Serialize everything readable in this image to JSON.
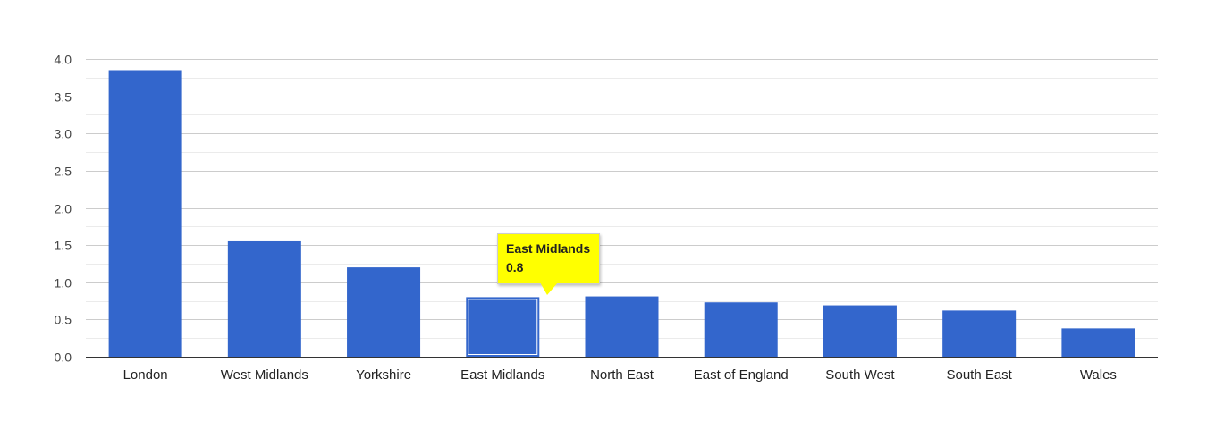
{
  "chart_data": {
    "type": "bar",
    "title": "",
    "xlabel": "",
    "ylabel": "",
    "categories": [
      "London",
      "West Midlands",
      "Yorkshire",
      "East Midlands",
      "North East",
      "East of England",
      "South West",
      "South East",
      "Wales"
    ],
    "values": [
      3.85,
      1.55,
      1.2,
      0.8,
      0.81,
      0.73,
      0.69,
      0.62,
      0.38
    ],
    "ylim": [
      0,
      4
    ],
    "yticks": [
      "0.0",
      "0.5",
      "1.0",
      "1.5",
      "2.0",
      "2.5",
      "3.0",
      "3.5",
      "4.0"
    ],
    "grid": true,
    "legend": "none",
    "bar_color": "#3366cc",
    "highlighted_category": "East Midlands"
  },
  "tooltip": {
    "category": "East Midlands",
    "value": "0.8",
    "background": "#ffff00"
  }
}
